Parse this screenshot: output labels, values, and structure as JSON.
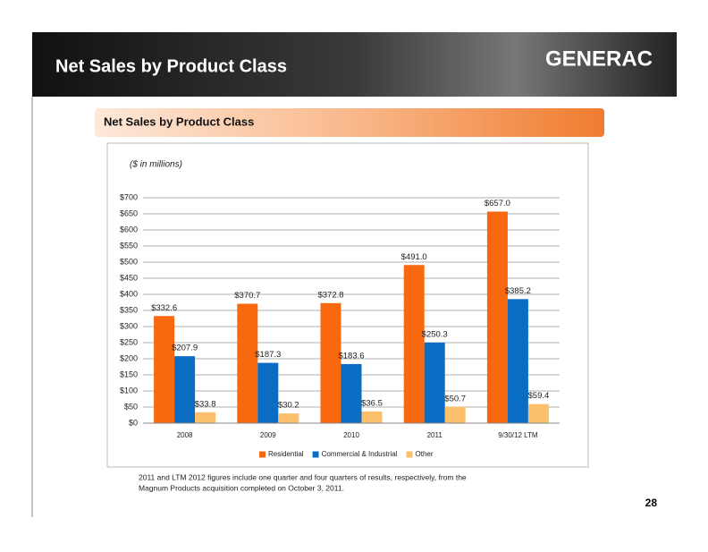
{
  "header": {
    "title": "Net Sales by Product Class",
    "logo": "GENERAC"
  },
  "section_title": "Net Sales by Product Class",
  "chart_data": {
    "type": "bar",
    "note": "($ in millions)",
    "categories": [
      "2008",
      "2009",
      "2010",
      "2011",
      "9/30/12 LTM"
    ],
    "series": [
      {
        "name": "Residential",
        "color": "#f7680f",
        "values": [
          332.6,
          370.7,
          372.8,
          491.0,
          657.0
        ],
        "value_labels": [
          "$332.6",
          "$370.7",
          "$372.8",
          "$491.0",
          "$657.0"
        ]
      },
      {
        "name": "Commercial & Industrial",
        "color": "#0b6cc4",
        "values": [
          207.9,
          187.3,
          183.6,
          250.3,
          385.2
        ],
        "value_labels": [
          "$207.9",
          "$187.3",
          "$183.6",
          "$250.3",
          "$385.2"
        ]
      },
      {
        "name": "Other",
        "color": "#fcc06c",
        "values": [
          33.8,
          30.2,
          36.5,
          50.7,
          59.4
        ],
        "value_labels": [
          "$33.8",
          "$30.2",
          "$36.5",
          "$50.7",
          "$59.4"
        ]
      }
    ],
    "ylim": [
      0,
      700
    ],
    "yticks": [
      {
        "value": 0,
        "label": "$0"
      },
      {
        "value": 50,
        "label": "$50"
      },
      {
        "value": 100,
        "label": "$100"
      },
      {
        "value": 150,
        "label": "$150"
      },
      {
        "value": 200,
        "label": "$200"
      },
      {
        "value": 250,
        "label": "$250"
      },
      {
        "value": 300,
        "label": "$300"
      },
      {
        "value": 350,
        "label": "$350"
      },
      {
        "value": 400,
        "label": "$400"
      },
      {
        "value": 450,
        "label": "$450"
      },
      {
        "value": 500,
        "label": "$500"
      },
      {
        "value": 550,
        "label": "$550"
      },
      {
        "value": 600,
        "label": "$600"
      },
      {
        "value": 650,
        "label": "$650"
      },
      {
        "value": 700,
        "label": "$700"
      }
    ],
    "grid": true,
    "legend": "bottom"
  },
  "footnote": [
    "2011 and LTM 2012 figures include one quarter and four quarters of results, respectively, from the",
    "Magnum Products acquisition completed on October 3, 2011."
  ],
  "page_number": "28"
}
